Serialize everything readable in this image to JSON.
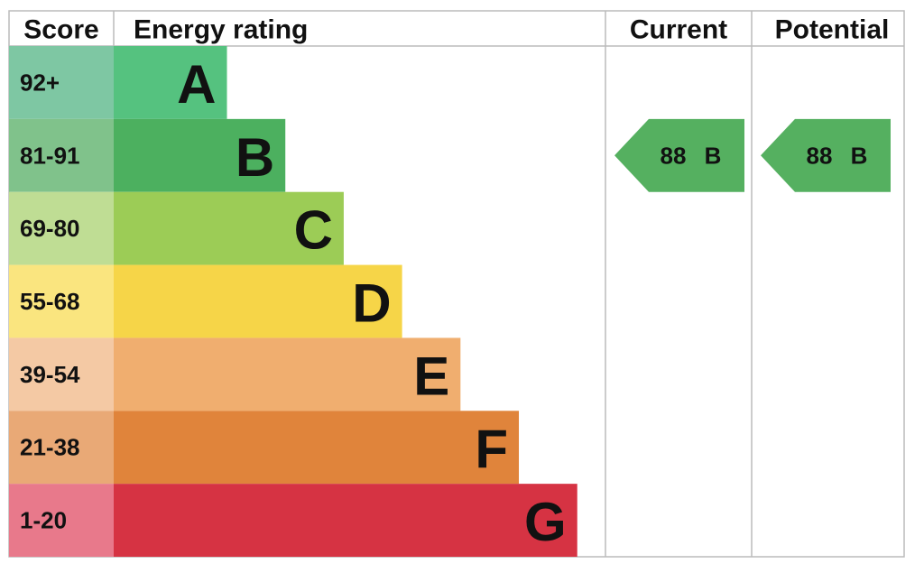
{
  "header": {
    "score": "Score",
    "rating": "Energy rating",
    "current": "Current",
    "potential": "Potential"
  },
  "bands": [
    {
      "score": "92+",
      "letter": "A",
      "color": "#55c27f",
      "light": "#7ec7a3"
    },
    {
      "score": "81-91",
      "letter": "B",
      "color": "#4cb05f",
      "light": "#80c28b"
    },
    {
      "score": "69-80",
      "letter": "C",
      "color": "#9ccc56",
      "light": "#bfdd94"
    },
    {
      "score": "55-68",
      "letter": "D",
      "color": "#f6d548",
      "light": "#fae57f"
    },
    {
      "score": "39-54",
      "letter": "E",
      "color": "#f0ae6f",
      "light": "#f4c9a4"
    },
    {
      "score": "21-38",
      "letter": "F",
      "color": "#e0843b",
      "light": "#e9a976"
    },
    {
      "score": "1-20",
      "letter": "G",
      "color": "#d63343",
      "light": "#e8798b"
    }
  ],
  "current": {
    "value": 88,
    "rating": "B",
    "color": "#55b060"
  },
  "potential": {
    "value": 88,
    "rating": "B",
    "color": "#55b060"
  }
}
